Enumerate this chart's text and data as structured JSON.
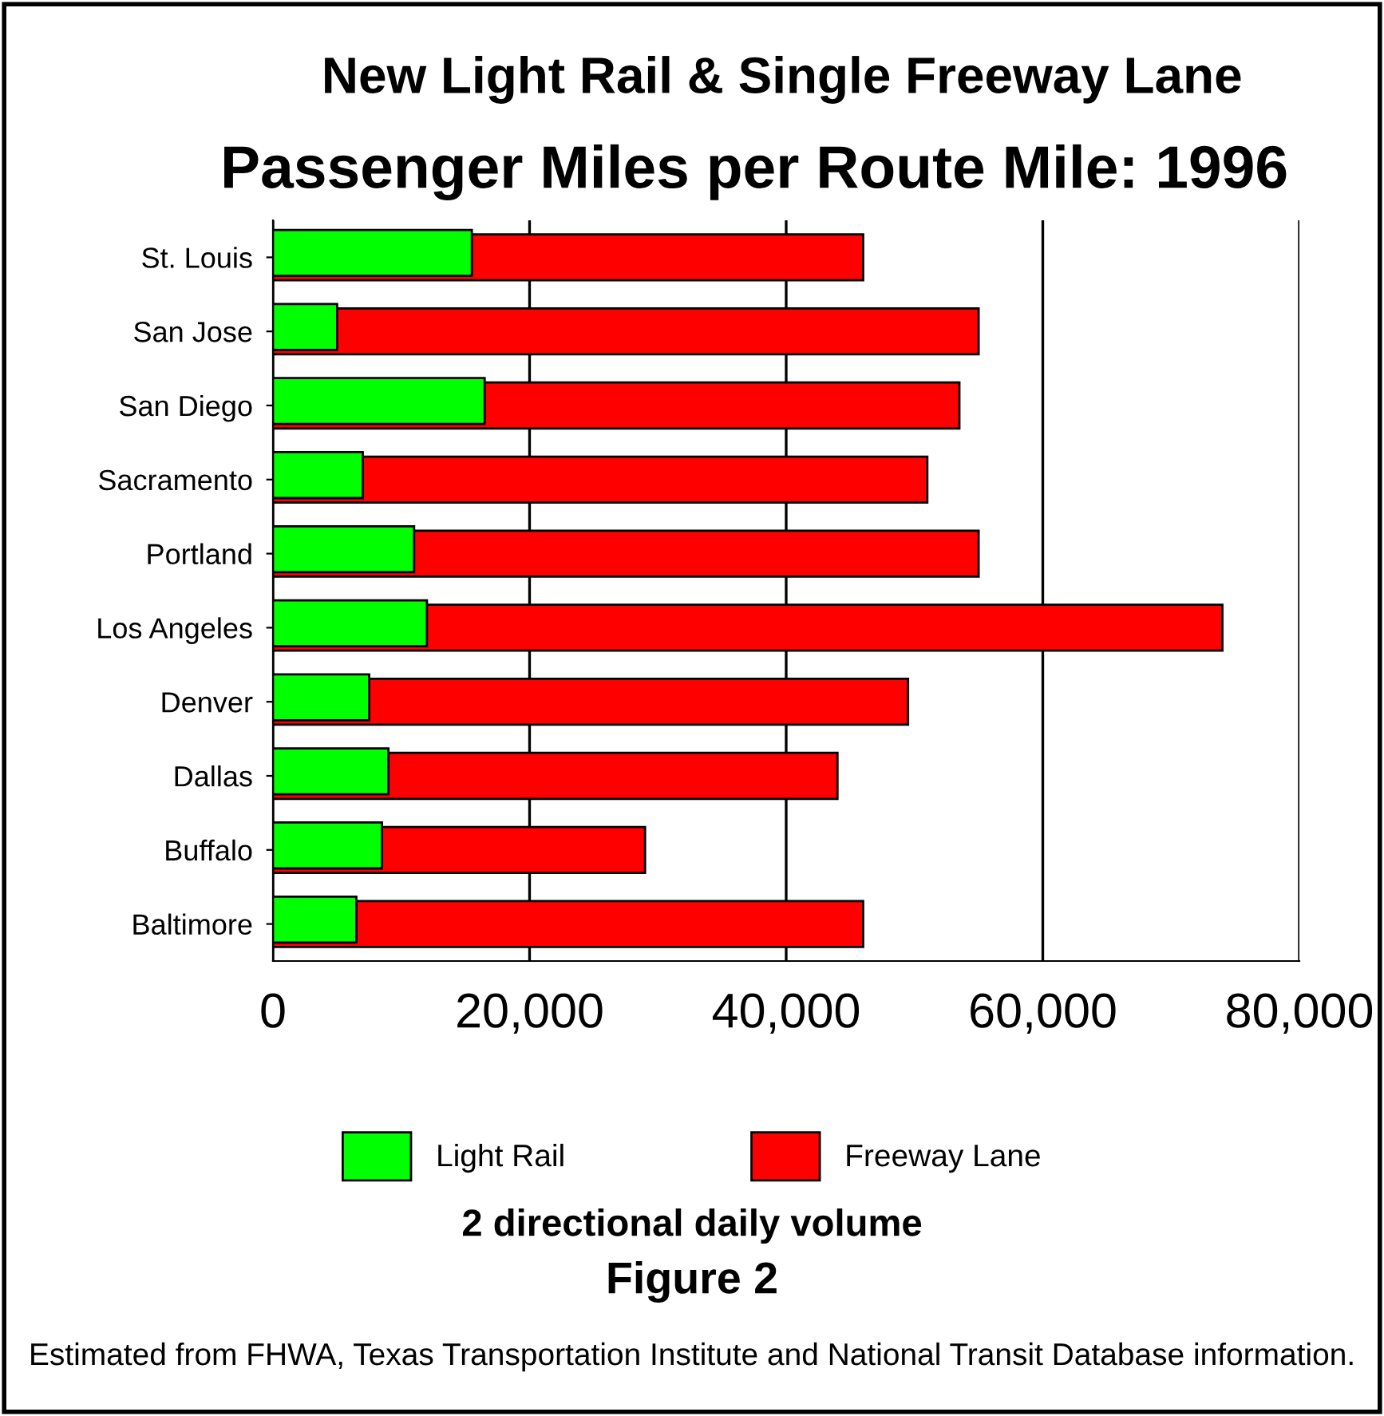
{
  "chart_data": {
    "type": "bar",
    "orientation": "horizontal",
    "title": "New Light Rail & Single Freeway Lane",
    "subtitle": "Passenger Miles per Route Mile: 1996",
    "categories": [
      "St. Louis",
      "San Jose",
      "San Diego",
      "Sacramento",
      "Portland",
      "Los Angeles",
      "Denver",
      "Dallas",
      "Buffalo",
      "Baltimore"
    ],
    "series": [
      {
        "name": "Light Rail",
        "color": "#00ff00",
        "values": [
          15500,
          5000,
          16500,
          7000,
          11000,
          12000,
          7500,
          9000,
          8500,
          6500
        ]
      },
      {
        "name": "Freeway Lane",
        "color": "#ff0000",
        "values": [
          46000,
          55000,
          53500,
          51000,
          55000,
          74000,
          49500,
          44000,
          29000,
          46000
        ]
      }
    ],
    "xlim": [
      0,
      80000
    ],
    "xticks": [
      0,
      {
        "value": 20000,
        "label": "20,000"
      },
      {
        "value": 40000,
        "label": "40,000"
      },
      {
        "value": 60000,
        "label": "60,000"
      },
      {
        "value": 80000,
        "label": "80,000"
      }
    ],
    "grid": "x",
    "legend": "bottom",
    "annotations": [
      "2 directional daily volume",
      "Figure 2",
      "Estimated from FHWA, Texas Transportation Institute and National Transit Database information."
    ]
  }
}
